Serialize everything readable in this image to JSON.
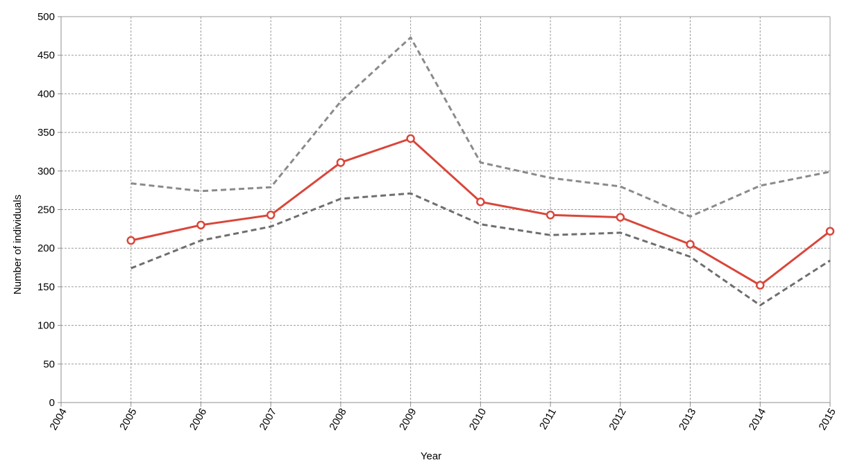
{
  "chart_data": {
    "type": "line",
    "title": "",
    "xlabel": "Year",
    "ylabel": "Number of individuals",
    "x_ticks": [
      "2004",
      "2005",
      "2006",
      "2007",
      "2008",
      "2009",
      "2010",
      "2011",
      "2012",
      "2013",
      "2014",
      "2015"
    ],
    "y_ticks": [
      "0",
      "50",
      "100",
      "150",
      "200",
      "250",
      "300",
      "350",
      "400",
      "450",
      "500"
    ],
    "xlim": [
      2004,
      2015
    ],
    "ylim": [
      0,
      500
    ],
    "grid": true,
    "legend": "none",
    "x": [
      2005,
      2006,
      2007,
      2008,
      2009,
      2010,
      2011,
      2012,
      2013,
      2014,
      2015
    ],
    "series": [
      {
        "role": "upper",
        "style": "dashed",
        "color": "#8a8a8a",
        "values": [
          284,
          274,
          279,
          390,
          473,
          311,
          291,
          280,
          241,
          281,
          299
        ]
      },
      {
        "role": "estimate",
        "style": "solid-with-circle-markers",
        "color": "#d9463a",
        "values": [
          210,
          230,
          243,
          311,
          342,
          260,
          243,
          240,
          205,
          152,
          222
        ]
      },
      {
        "role": "lower",
        "style": "dashed",
        "color": "#6e6e6e",
        "values": [
          174,
          210,
          228,
          264,
          271,
          231,
          217,
          220,
          189,
          126,
          184
        ]
      }
    ]
  }
}
